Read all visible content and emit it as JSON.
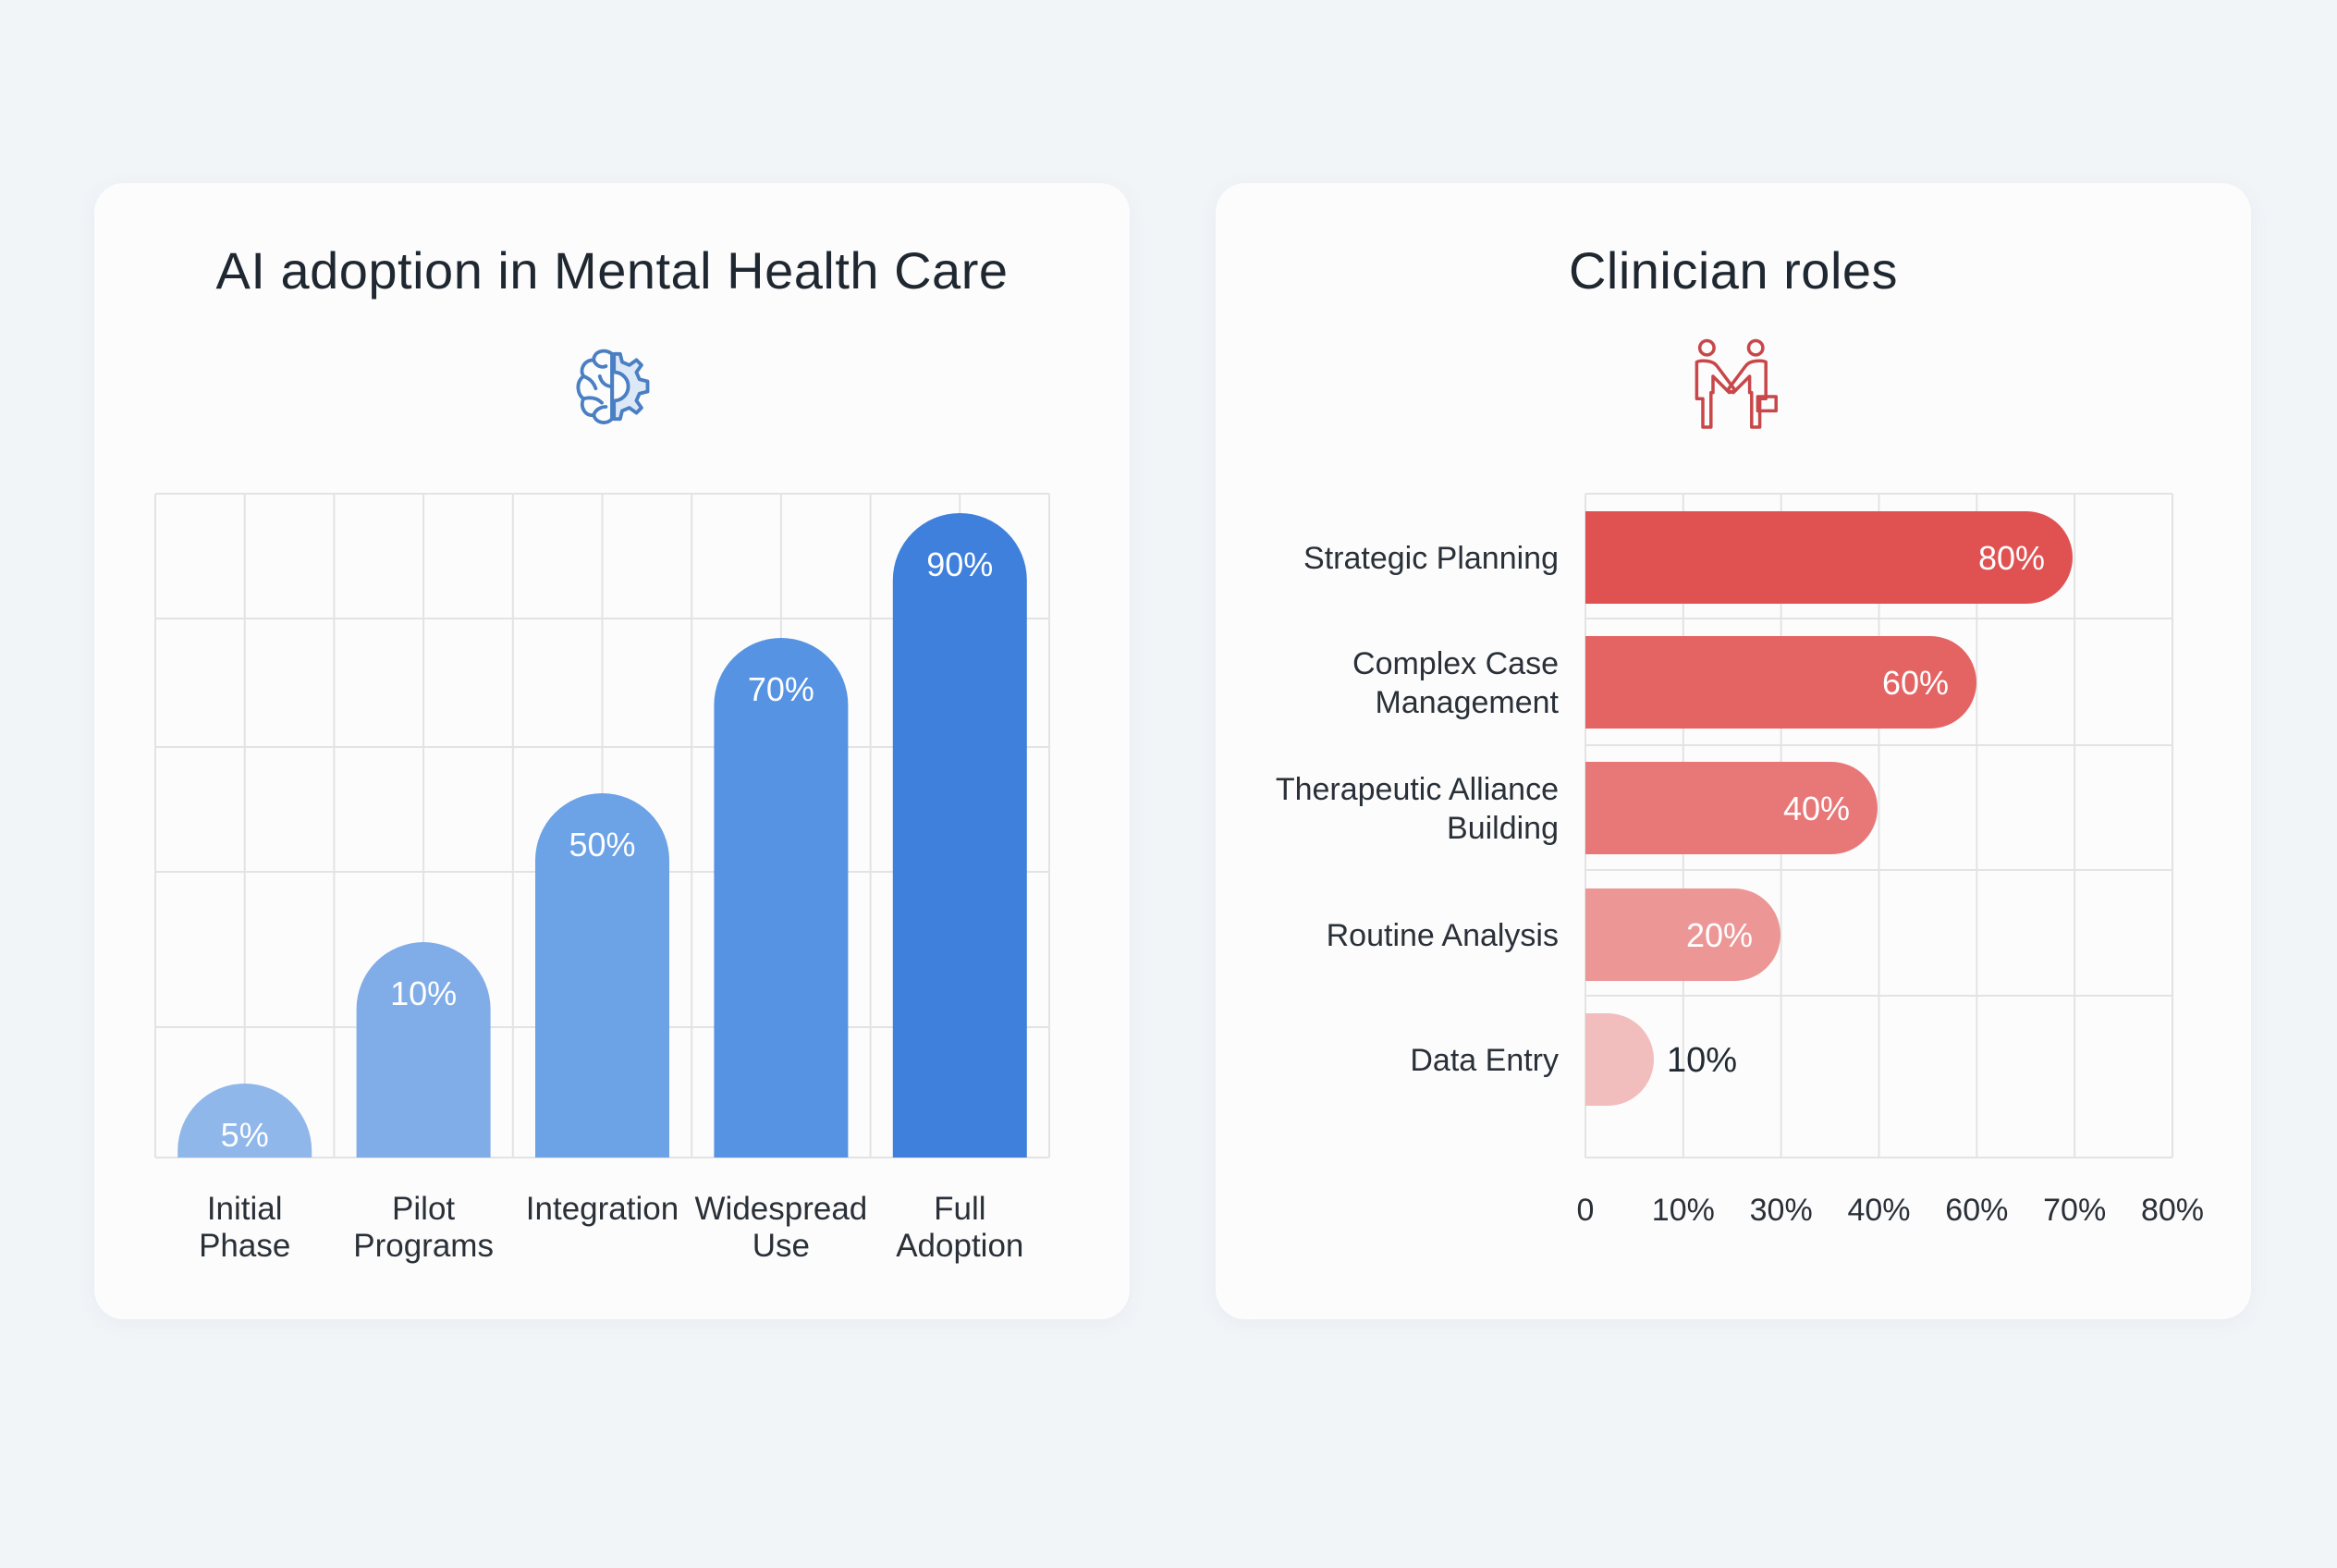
{
  "chart_data": [
    {
      "type": "bar",
      "title": "AI adoption in Mental Health Care",
      "icon": "brain-gear-icon",
      "categories": [
        [
          "Initial",
          "Phase"
        ],
        [
          "Pilot",
          "Programs"
        ],
        [
          "Integration"
        ],
        [
          "Widespread",
          "Use"
        ],
        [
          "Full",
          "Adoption"
        ]
      ],
      "values": [
        5,
        10,
        50,
        70,
        90
      ],
      "data_labels": [
        "5%",
        "10%",
        "50%",
        "70%",
        "90%"
      ],
      "colors": [
        "#8fb7ea",
        "#80ade8",
        "#6ca2e6",
        "#5693e3",
        "#3f80dc"
      ],
      "grid": true,
      "orientation": "vertical"
    },
    {
      "type": "bar",
      "title": "Clinician roles",
      "icon": "handshake-icon",
      "categories": [
        [
          "Strategic Planning"
        ],
        [
          "Complex Case",
          "Management"
        ],
        [
          "Therapeutic Alliance",
          "Building"
        ],
        [
          "Routine Analysis"
        ],
        [
          "Data Entry"
        ]
      ],
      "values": [
        80,
        60,
        40,
        20,
        10
      ],
      "data_labels": [
        "80%",
        "60%",
        "40%",
        "20%",
        "10%"
      ],
      "x_tick_labels": [
        "0",
        "10%",
        "30%",
        "40%",
        "60%",
        "70%",
        "80%"
      ],
      "colors": [
        "#e05252",
        "#e46464",
        "#e87878",
        "#ed9696",
        "#f2bdbd"
      ],
      "grid": true,
      "orientation": "horizontal"
    }
  ]
}
